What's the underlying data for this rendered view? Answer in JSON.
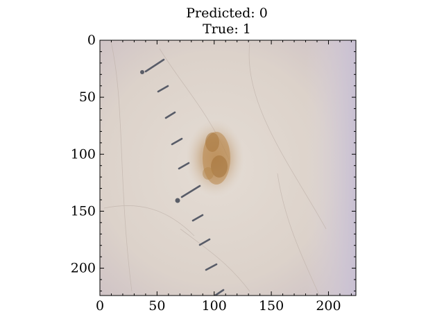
{
  "title": {
    "line1": "Predicted: 0",
    "line2": "True: 1"
  },
  "axes": {
    "x_ticks": [
      "0",
      "50",
      "100",
      "150",
      "200"
    ],
    "y_ticks": [
      "0",
      "50",
      "100",
      "150",
      "200"
    ],
    "xlim": [
      0,
      224
    ],
    "ylim": [
      224,
      0
    ]
  },
  "image": {
    "subject": "dermoscopy image of a skin lesion",
    "background_color": "#ddd4cc",
    "lesion_color": "#b5864a",
    "marker_color": "#555a66"
  }
}
